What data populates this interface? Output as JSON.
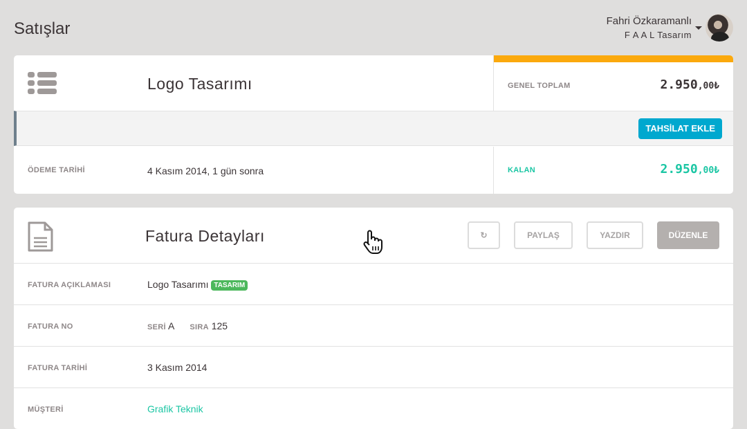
{
  "page": {
    "title": "Satışlar"
  },
  "user": {
    "name": "Fahri Özkaramanlı",
    "org": "F A A L Tasarım"
  },
  "summary": {
    "title": "Logo Tasarımı",
    "total_label": "GENEL TOPLAM",
    "total_int": "2.950",
    "total_dec": ",00₺",
    "add_payment": "TAHSİLAT EKLE",
    "due_label": "ÖDEME TARİHİ",
    "due_value": "4 Kasım 2014, 1 gün sonra",
    "remaining_label": "KALAN",
    "remaining_int": "2.950",
    "remaining_dec": ",00₺",
    "colors": {
      "accent_bar": "#fba90d",
      "button": "#00a8cf",
      "remaining": "#1bc6a4"
    }
  },
  "invoice": {
    "title": "Fatura Detayları",
    "buttons": {
      "refresh": "↻",
      "share": "PAYLAŞ",
      "print": "YAZDIR",
      "edit": "DÜZENLE"
    },
    "rows": [
      {
        "label": "FATURA AÇIKLAMASI",
        "value": "Logo Tasarımı",
        "tag": "TASARIM"
      },
      {
        "label": "FATURA NO",
        "seri_label": "SERİ",
        "seri": "A",
        "sira_label": "SIRA",
        "sira": "125"
      },
      {
        "label": "FATURA TARİHİ",
        "value": "3 Kasım 2014"
      },
      {
        "label": "MÜŞTERİ",
        "value": "Grafik Teknik"
      }
    ]
  }
}
